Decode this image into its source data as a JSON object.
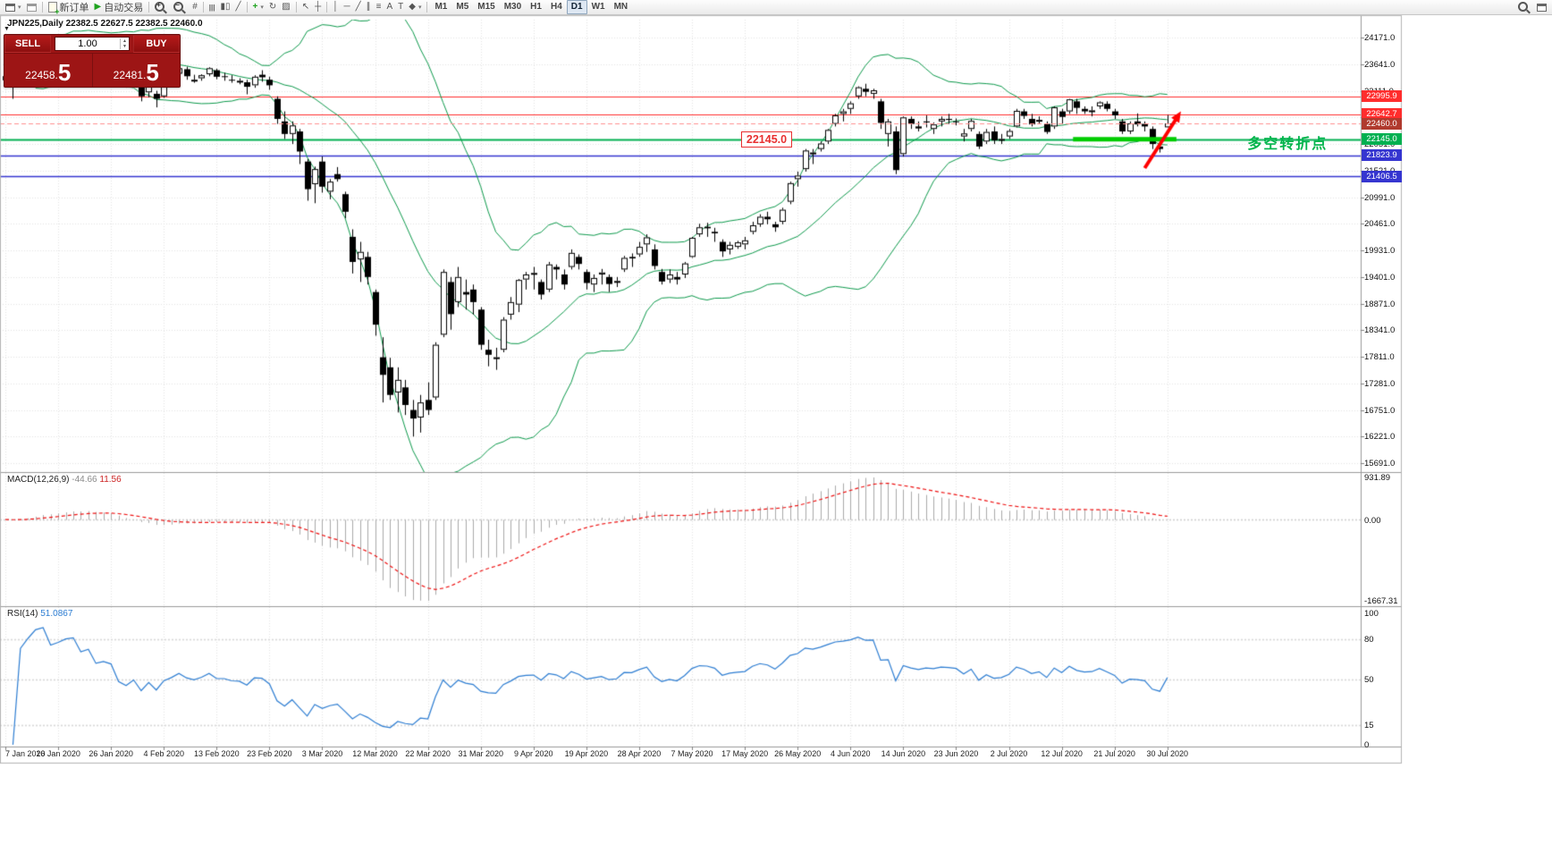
{
  "toolbar": {
    "new_order": "新订单",
    "autotrade": "自动交易",
    "timeframes": [
      "M1",
      "M5",
      "M15",
      "M30",
      "H1",
      "H4",
      "D1",
      "W1",
      "MN"
    ],
    "active_timeframe": "D1"
  },
  "chart": {
    "header": "JPN225,Daily 22382.5 22627.5 22382.5 22460.0",
    "one_click": {
      "sell_label": "SELL",
      "buy_label": "BUY",
      "volume": "1.00",
      "sell_price_small": "22458.",
      "sell_price_big": "5",
      "buy_price_small": "22481.",
      "buy_price_big": "5"
    }
  },
  "chart_data": {
    "type": "candlestick",
    "symbol": "JPN225",
    "timeframe": "Daily",
    "x_labels": [
      "7 Jan 2020",
      "16 Jan 2020",
      "26 Jan 2020",
      "4 Feb 2020",
      "13 Feb 2020",
      "23 Feb 2020",
      "3 Mar 2020",
      "12 Mar 2020",
      "22 Mar 2020",
      "31 Mar 2020",
      "9 Apr 2020",
      "19 Apr 2020",
      "28 Apr 2020",
      "7 May 2020",
      "17 May 2020",
      "26 May 2020",
      "4 Jun 2020",
      "14 Jun 2020",
      "23 Jun 2020",
      "2 Jul 2020",
      "12 Jul 2020",
      "21 Jul 2020",
      "30 Jul 2020"
    ],
    "bars_per_label": 7,
    "y_axis": {
      "step": 530,
      "labels": [
        "24171.0",
        "23641.0",
        "23111.0",
        "22581.0",
        "22051.0",
        "21521.0",
        "20991.0",
        "20461.0",
        "19931.0",
        "19401.0",
        "18871.0",
        "18341.0",
        "17811.0",
        "17281.0",
        "16751.0",
        "16221.0",
        "15691.0"
      ]
    },
    "price_lines": [
      {
        "price": 22995.9,
        "label": "22995.9",
        "color": "#ff2d2d",
        "width": 1.2
      },
      {
        "price": 22642.7,
        "label": "22642.7",
        "color": "#ff2d2d",
        "width": 1.2
      },
      {
        "price": 22145.0,
        "label": "22145.0",
        "color": "#00b050",
        "width": 2
      },
      {
        "price": 21823.9,
        "label": "21823.9",
        "color": "#3535d0",
        "width": 1.6
      },
      {
        "price": 21406.5,
        "label": "21406.5",
        "color": "#3535d0",
        "width": 1.6
      }
    ],
    "current_price": {
      "price": 22460.0,
      "label": "22460.0",
      "tag_color": "#b03a2e",
      "line_color": "#ff9090"
    },
    "indicators": {
      "bollinger": {
        "period": 20,
        "deviation": 2,
        "color": "#0d9a4c"
      },
      "macd": {
        "name": "MACD(12,26,9)",
        "main_value": "-44.66",
        "signal_value": "11.56",
        "histogram_color": "#aaaaaa",
        "signal_color": "#ee1111",
        "scale_labels": [
          "931.89",
          "0.00",
          "-1667.31"
        ]
      },
      "rsi": {
        "name": "RSI(14)",
        "value": "51.0867",
        "color": "#2d7dd2",
        "levels": [
          80,
          50,
          15
        ],
        "scale_labels": [
          "100",
          "80",
          "50",
          "15",
          "0"
        ],
        "scale_values": [
          100,
          80,
          50,
          15,
          0
        ]
      }
    },
    "annotations": {
      "callout": {
        "text": "22145.0",
        "bar": 97.5,
        "price": 22145.0
      },
      "segment": {
        "price": 22145.0,
        "bar_from": 141.5,
        "bar_to": 155.2,
        "color": "#00cc00",
        "width": 5
      },
      "arrow": {
        "from_bar": 151.0,
        "from_price": 21570,
        "to_bar": 155.8,
        "to_price": 22700,
        "color": "#ff0000"
      },
      "turning_point": {
        "text": "多空转折点",
        "bar": 164.6,
        "price": 22145.0,
        "color": "#00b44b"
      }
    },
    "candles": [
      [
        23320,
        23430,
        23250,
        23400
      ],
      [
        23200,
        23350,
        22950,
        23320
      ],
      [
        23370,
        23560,
        23340,
        23540
      ],
      [
        23560,
        23680,
        23500,
        23660
      ],
      [
        23680,
        23900,
        23650,
        23880
      ],
      [
        23890,
        24050,
        23820,
        23980
      ],
      [
        23960,
        24000,
        23780,
        23850
      ],
      [
        23870,
        23970,
        23810,
        23930
      ],
      [
        23960,
        24120,
        23930,
        24060
      ],
      [
        24060,
        24171,
        24000,
        24110
      ],
      [
        24090,
        24120,
        23870,
        23940
      ],
      [
        23950,
        24070,
        23900,
        24030
      ],
      [
        23990,
        24020,
        23630,
        23790
      ],
      [
        23820,
        23920,
        23740,
        23850
      ],
      [
        23830,
        23870,
        23770,
        23800
      ],
      [
        23600,
        23650,
        23300,
        23350
      ],
      [
        23320,
        23450,
        23180,
        23220
      ],
      [
        23290,
        23420,
        23240,
        23380
      ],
      [
        23280,
        23320,
        22900,
        23000
      ],
      [
        23080,
        23300,
        22980,
        23250
      ],
      [
        23050,
        23110,
        22780,
        22950
      ],
      [
        23000,
        23290,
        22970,
        23270
      ],
      [
        23310,
        23410,
        23250,
        23390
      ],
      [
        23450,
        23590,
        23420,
        23560
      ],
      [
        23540,
        23590,
        23330,
        23400
      ],
      [
        23320,
        23430,
        23270,
        23330
      ],
      [
        23360,
        23440,
        23310,
        23420
      ],
      [
        23440,
        23580,
        23400,
        23560
      ],
      [
        23520,
        23550,
        23340,
        23390
      ],
      [
        23400,
        23470,
        23310,
        23390
      ],
      [
        23330,
        23420,
        23270,
        23320
      ],
      [
        23300,
        23360,
        23240,
        23310
      ],
      [
        23280,
        23330,
        23040,
        23190
      ],
      [
        23220,
        23420,
        23170,
        23390
      ],
      [
        23430,
        23520,
        23290,
        23380
      ],
      [
        23330,
        23390,
        23130,
        23220
      ],
      [
        22950,
        23000,
        22450,
        22550
      ],
      [
        22500,
        22700,
        22150,
        22250
      ],
      [
        22250,
        22500,
        22050,
        22420
      ],
      [
        22300,
        22350,
        21650,
        21900
      ],
      [
        21700,
        21750,
        20920,
        21150
      ],
      [
        21250,
        21600,
        20870,
        21550
      ],
      [
        21700,
        21800,
        21080,
        21200
      ],
      [
        21100,
        21350,
        20950,
        21300
      ],
      [
        21450,
        21590,
        21300,
        21350
      ],
      [
        21050,
        21100,
        20570,
        20700
      ],
      [
        20200,
        20350,
        19470,
        19700
      ],
      [
        19750,
        20100,
        19300,
        19900
      ],
      [
        19800,
        19900,
        19250,
        19400
      ],
      [
        19100,
        19150,
        18230,
        18450
      ],
      [
        17800,
        18200,
        16900,
        17450
      ],
      [
        17600,
        17790,
        16950,
        17050
      ],
      [
        17100,
        17600,
        16700,
        17350
      ],
      [
        17200,
        17350,
        16650,
        16850
      ],
      [
        16750,
        16950,
        16220,
        16580
      ],
      [
        16600,
        17050,
        16300,
        16900
      ],
      [
        16950,
        17300,
        16650,
        16750
      ],
      [
        17000,
        18100,
        16950,
        18050
      ],
      [
        18250,
        19550,
        18200,
        19500
      ],
      [
        19300,
        19400,
        18350,
        18660
      ],
      [
        18900,
        19600,
        18800,
        19400
      ],
      [
        19100,
        19350,
        18750,
        19050
      ],
      [
        19150,
        19250,
        18650,
        18900
      ],
      [
        18750,
        18800,
        17950,
        18050
      ],
      [
        17950,
        18150,
        17620,
        17850
      ],
      [
        17800,
        17990,
        17550,
        17800
      ],
      [
        17950,
        18600,
        17900,
        18550
      ],
      [
        18650,
        19000,
        18550,
        18900
      ],
      [
        18850,
        19360,
        18700,
        19340
      ],
      [
        19350,
        19500,
        19150,
        19450
      ],
      [
        19450,
        19600,
        19150,
        19480
      ],
      [
        19300,
        19350,
        18950,
        19050
      ],
      [
        19150,
        19700,
        19100,
        19650
      ],
      [
        19600,
        19650,
        19350,
        19550
      ],
      [
        19450,
        19550,
        19150,
        19250
      ],
      [
        19600,
        19950,
        19550,
        19880
      ],
      [
        19800,
        19850,
        19550,
        19660
      ],
      [
        19500,
        19550,
        19150,
        19280
      ],
      [
        19250,
        19450,
        19100,
        19380
      ],
      [
        19450,
        19560,
        19250,
        19490
      ],
      [
        19400,
        19450,
        19100,
        19260
      ],
      [
        19300,
        19400,
        19200,
        19320
      ],
      [
        19550,
        19820,
        19500,
        19780
      ],
      [
        19800,
        19870,
        19600,
        19770
      ],
      [
        19850,
        20100,
        19800,
        20000
      ],
      [
        20050,
        20250,
        19900,
        20190
      ],
      [
        19950,
        20050,
        19550,
        19620
      ],
      [
        19500,
        19560,
        19250,
        19310
      ],
      [
        19350,
        19550,
        19280,
        19450
      ],
      [
        19400,
        19500,
        19250,
        19350
      ],
      [
        19450,
        19700,
        19380,
        19670
      ],
      [
        19800,
        20200,
        19780,
        20180
      ],
      [
        20250,
        20460,
        20200,
        20390
      ],
      [
        20400,
        20480,
        20200,
        20370
      ],
      [
        20300,
        20380,
        20100,
        20270
      ],
      [
        20100,
        20150,
        19800,
        19910
      ],
      [
        19950,
        20100,
        19850,
        20040
      ],
      [
        20000,
        20120,
        19960,
        20090
      ],
      [
        20050,
        20200,
        19950,
        20130
      ],
      [
        20300,
        20500,
        20250,
        20430
      ],
      [
        20450,
        20650,
        20400,
        20600
      ],
      [
        20600,
        20700,
        20450,
        20550
      ],
      [
        20450,
        20500,
        20300,
        20390
      ],
      [
        20500,
        20780,
        20450,
        20740
      ],
      [
        20900,
        21300,
        20850,
        21270
      ],
      [
        21350,
        21500,
        21200,
        21420
      ],
      [
        21550,
        21950,
        21500,
        21920
      ],
      [
        21850,
        21950,
        21650,
        21880
      ],
      [
        21950,
        22100,
        21900,
        22060
      ],
      [
        22100,
        22350,
        22050,
        22330
      ],
      [
        22450,
        22650,
        22400,
        22620
      ],
      [
        22650,
        22750,
        22500,
        22700
      ],
      [
        22750,
        22900,
        22650,
        22860
      ],
      [
        23000,
        23200,
        22950,
        23180
      ],
      [
        23150,
        23250,
        23000,
        23090
      ],
      [
        23050,
        23150,
        22950,
        23120
      ],
      [
        22900,
        22950,
        22350,
        22470
      ],
      [
        22250,
        22550,
        22000,
        22500
      ],
      [
        22300,
        22400,
        21450,
        21530
      ],
      [
        21850,
        22600,
        21800,
        22580
      ],
      [
        22550,
        22600,
        22350,
        22450
      ],
      [
        22400,
        22500,
        22300,
        22360
      ],
      [
        22500,
        22620,
        22380,
        22480
      ],
      [
        22350,
        22480,
        22250,
        22440
      ],
      [
        22500,
        22600,
        22400,
        22550
      ],
      [
        22550,
        22650,
        22450,
        22530
      ],
      [
        22500,
        22560,
        22420,
        22490
      ],
      [
        22200,
        22350,
        22100,
        22260
      ],
      [
        22350,
        22550,
        22300,
        22510
      ],
      [
        22250,
        22300,
        21950,
        22000
      ],
      [
        22100,
        22350,
        22050,
        22290
      ],
      [
        22300,
        22400,
        22050,
        22120
      ],
      [
        22150,
        22250,
        22050,
        22150
      ],
      [
        22200,
        22350,
        22150,
        22310
      ],
      [
        22400,
        22750,
        22380,
        22710
      ],
      [
        22700,
        22750,
        22550,
        22610
      ],
      [
        22550,
        22650,
        22400,
        22440
      ],
      [
        22500,
        22600,
        22450,
        22530
      ],
      [
        22450,
        22500,
        22250,
        22290
      ],
      [
        22400,
        22800,
        22350,
        22780
      ],
      [
        22700,
        22750,
        22450,
        22590
      ],
      [
        22700,
        22950,
        22650,
        22940
      ],
      [
        22900,
        22950,
        22650,
        22770
      ],
      [
        22750,
        22800,
        22650,
        22700
      ],
      [
        22700,
        22800,
        22600,
        22720
      ],
      [
        22800,
        22900,
        22750,
        22880
      ],
      [
        22850,
        22900,
        22700,
        22750
      ],
      [
        22700,
        22750,
        22550,
        22620
      ],
      [
        22500,
        22550,
        22250,
        22300
      ],
      [
        22300,
        22500,
        22250,
        22460
      ],
      [
        22500,
        22660,
        22400,
        22440
      ],
      [
        22450,
        22500,
        22300,
        22400
      ],
      [
        22350,
        22400,
        21950,
        22050
      ],
      [
        22000,
        22100,
        21880,
        21950
      ],
      [
        22382.5,
        22627.5,
        22382.5,
        22460.0
      ]
    ]
  }
}
